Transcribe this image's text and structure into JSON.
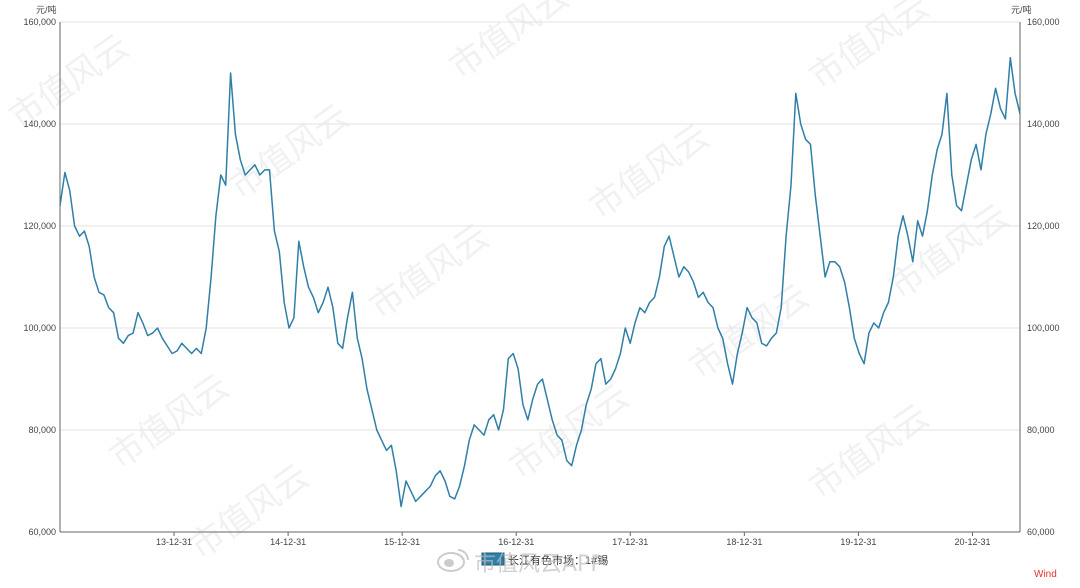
{
  "chart_data": {
    "type": "line",
    "title": "",
    "ylabel_left": "元/吨",
    "ylabel_right": "元/吨",
    "ylim": [
      60000,
      160000
    ],
    "yticks": [
      "60,000",
      "80,000",
      "100,000",
      "120,000",
      "140,000",
      "160,000"
    ],
    "ytick_values": [
      60000,
      80000,
      100000,
      120000,
      140000,
      160000
    ],
    "xticks": [
      "13-12-31",
      "14-12-31",
      "15-12-31",
      "16-12-31",
      "17-12-31",
      "18-12-31",
      "19-12-31",
      "20-12-31"
    ],
    "grid": true,
    "legend_position": "bottom",
    "line_color": "#2f7fa8",
    "series": [
      {
        "name": "长江有色市场：1#锡",
        "x_start": "2013-01",
        "step_months": 0.25,
        "values": [
          124000,
          130500,
          127000,
          120000,
          118000,
          119000,
          116000,
          110000,
          107000,
          106500,
          104000,
          103000,
          98000,
          97000,
          98500,
          99000,
          103000,
          101000,
          98500,
          99000,
          100000,
          98000,
          96500,
          95000,
          95500,
          97000,
          96000,
          95000,
          96000,
          95000,
          100000,
          110000,
          122000,
          130000,
          128000,
          150000,
          138000,
          133000,
          130000,
          131000,
          132000,
          130000,
          131000,
          131000,
          119000,
          115000,
          105000,
          100000,
          102000,
          117000,
          112000,
          108000,
          106000,
          103000,
          105000,
          108000,
          104000,
          97000,
          96000,
          102000,
          107000,
          98000,
          94000,
          88000,
          84000,
          80000,
          78000,
          76000,
          77000,
          72000,
          65000,
          70000,
          68000,
          66000,
          67000,
          68000,
          69000,
          71000,
          72000,
          70000,
          67000,
          66500,
          69000,
          73000,
          78000,
          81000,
          80000,
          79000,
          82000,
          83000,
          80000,
          84000,
          94000,
          95000,
          92000,
          85000,
          82000,
          86000,
          89000,
          90000,
          86000,
          82000,
          79000,
          78000,
          74000,
          73000,
          77000,
          80000,
          85000,
          88000,
          93000,
          94000,
          89000,
          90000,
          92000,
          95000,
          100000,
          97000,
          101000,
          104000,
          103000,
          105000,
          106000,
          110000,
          116000,
          118000,
          114000,
          110000,
          112000,
          111000,
          109000,
          106000,
          107000,
          105000,
          104000,
          100000,
          98000,
          93000,
          89000,
          95000,
          99000,
          104000,
          102000,
          101000,
          97000,
          96500,
          98000,
          99000,
          104000,
          118000,
          128000,
          146000,
          140000,
          137000,
          136000,
          126000,
          118000,
          110000,
          113000,
          113000,
          112000,
          109000,
          104000,
          98000,
          95000,
          93000,
          99000,
          101000,
          100000,
          103000,
          105000,
          110000,
          118000,
          122000,
          118000,
          113000,
          121000,
          118000,
          123000,
          130000,
          135000,
          138000,
          146000,
          130000,
          124000,
          123000,
          128000,
          133000,
          136000,
          131000,
          138000,
          142000,
          147000,
          143000,
          141000,
          153000,
          146000,
          142000
        ]
      }
    ]
  },
  "legend": {
    "label": "长江有色市场：1#锡"
  },
  "watermark": {
    "text": "市值风云",
    "overlay_text": "市值风云APP",
    "icon": "weibo-icon"
  },
  "source": "Wind"
}
